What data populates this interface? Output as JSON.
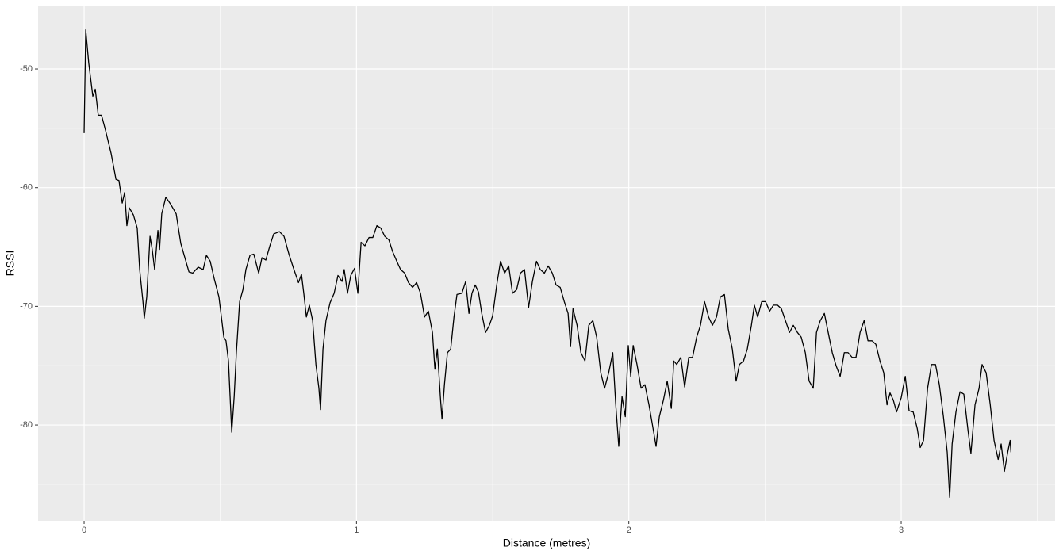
{
  "chart_data": {
    "type": "line",
    "x_label": "Distance (metres)",
    "y_label": "RSSI",
    "xlim": [
      -0.169,
      3.565
    ],
    "ylim": [
      -88.08,
      -44.72
    ],
    "xticks": [
      0,
      1,
      2,
      3
    ],
    "yticks": [
      -50,
      -60,
      -70,
      -80
    ],
    "x_minor": [
      0.5,
      1.5,
      2.5,
      3.5
    ],
    "y_minor": [
      -55,
      -65,
      -75,
      -85
    ],
    "grid": true,
    "panel_color": "#ebebeb",
    "series": [
      {
        "color": "#000000",
        "x": [
          0,
          0.006,
          0.017,
          0.032,
          0.041,
          0.052,
          0.064,
          0.079,
          0.099,
          0.117,
          0.128,
          0.14,
          0.149,
          0.157,
          0.166,
          0.181,
          0.195,
          0.204,
          0.216,
          0.221,
          0.23,
          0.242,
          0.25,
          0.259,
          0.271,
          0.277,
          0.285,
          0.3,
          0.318,
          0.338,
          0.355,
          0.37,
          0.385,
          0.399,
          0.419,
          0.437,
          0.449,
          0.463,
          0.478,
          0.495,
          0.504,
          0.513,
          0.521,
          0.53,
          0.536,
          0.542,
          0.551,
          0.559,
          0.571,
          0.583,
          0.594,
          0.609,
          0.623,
          0.641,
          0.653,
          0.667,
          0.682,
          0.696,
          0.717,
          0.734,
          0.752,
          0.769,
          0.787,
          0.798,
          0.807,
          0.816,
          0.827,
          0.839,
          0.851,
          0.862,
          0.868,
          0.877,
          0.888,
          0.903,
          0.918,
          0.932,
          0.947,
          0.955,
          0.967,
          0.979,
          0.993,
          1.005,
          1.017,
          1.031,
          1.046,
          1.06,
          1.075,
          1.089,
          1.104,
          1.119,
          1.133,
          1.148,
          1.162,
          1.177,
          1.191,
          1.206,
          1.221,
          1.235,
          1.25,
          1.264,
          1.279,
          1.288,
          1.297,
          1.308,
          1.314,
          1.323,
          1.334,
          1.346,
          1.358,
          1.369,
          1.387,
          1.401,
          1.413,
          1.424,
          1.436,
          1.448,
          1.46,
          1.474,
          1.488,
          1.5,
          1.515,
          1.529,
          1.544,
          1.559,
          1.573,
          1.588,
          1.602,
          1.617,
          1.632,
          1.646,
          1.661,
          1.675,
          1.69,
          1.704,
          1.719,
          1.733,
          1.748,
          1.763,
          1.777,
          1.786,
          1.795,
          1.81,
          1.824,
          1.839,
          1.853,
          1.868,
          1.882,
          1.897,
          1.911,
          1.926,
          1.941,
          1.952,
          1.963,
          1.975,
          1.987,
          1.998,
          2.007,
          2.016,
          2.03,
          2.045,
          2.059,
          2.074,
          2.089,
          2.1,
          2.112,
          2.127,
          2.141,
          2.156,
          2.165,
          2.176,
          2.191,
          2.205,
          2.22,
          2.234,
          2.249,
          2.263,
          2.278,
          2.293,
          2.307,
          2.322,
          2.336,
          2.351,
          2.365,
          2.38,
          2.394,
          2.406,
          2.421,
          2.435,
          2.45,
          2.461,
          2.473,
          2.488,
          2.502,
          2.517,
          2.531,
          2.546,
          2.56,
          2.575,
          2.59,
          2.604,
          2.619,
          2.633,
          2.648,
          2.662,
          2.677,
          2.689,
          2.703,
          2.718,
          2.732,
          2.747,
          2.761,
          2.776,
          2.791,
          2.805,
          2.82,
          2.834,
          2.849,
          2.864,
          2.878,
          2.893,
          2.907,
          2.922,
          2.936,
          2.948,
          2.959,
          2.971,
          2.983,
          3.0,
          3.015,
          3.029,
          3.044,
          3.059,
          3.07,
          3.082,
          3.097,
          3.111,
          3.126,
          3.14,
          3.155,
          3.169,
          3.178,
          3.187,
          3.201,
          3.216,
          3.23,
          3.245,
          3.256,
          3.271,
          3.286,
          3.297,
          3.312,
          3.327,
          3.341,
          3.356,
          3.367,
          3.379,
          3.391,
          3.4,
          3.403
        ],
        "values": [
          -55.4,
          -46.7,
          -49.5,
          -52.3,
          -51.7,
          -53.9,
          -53.9,
          -55.2,
          -57.1,
          -59.3,
          -59.4,
          -61.3,
          -60.4,
          -63.2,
          -61.7,
          -62.3,
          -63.4,
          -66.9,
          -69.6,
          -71.0,
          -69.2,
          -64.1,
          -65.2,
          -66.9,
          -63.6,
          -65.2,
          -62.2,
          -60.8,
          -61.4,
          -62.2,
          -64.7,
          -65.9,
          -67.1,
          -67.2,
          -66.7,
          -66.9,
          -65.7,
          -66.2,
          -67.7,
          -69.2,
          -70.9,
          -72.6,
          -72.9,
          -74.6,
          -77.6,
          -80.6,
          -77.6,
          -73.9,
          -69.6,
          -68.6,
          -66.9,
          -65.7,
          -65.6,
          -67.2,
          -65.9,
          -66.1,
          -64.9,
          -63.9,
          -63.7,
          -64.1,
          -65.6,
          -66.8,
          -68.0,
          -67.3,
          -69.0,
          -70.9,
          -69.9,
          -71.2,
          -74.9,
          -76.9,
          -78.7,
          -73.6,
          -71.2,
          -69.7,
          -68.9,
          -67.4,
          -67.9,
          -66.9,
          -68.9,
          -67.4,
          -66.8,
          -68.9,
          -64.6,
          -64.9,
          -64.2,
          -64.2,
          -63.2,
          -63.4,
          -64.1,
          -64.4,
          -65.4,
          -66.2,
          -66.9,
          -67.2,
          -68.0,
          -68.4,
          -68.0,
          -68.9,
          -70.9,
          -70.4,
          -72.2,
          -75.3,
          -73.6,
          -77.6,
          -79.5,
          -76.6,
          -73.9,
          -73.6,
          -70.9,
          -69.0,
          -68.9,
          -67.9,
          -70.6,
          -68.9,
          -68.2,
          -68.8,
          -70.6,
          -72.2,
          -71.6,
          -70.8,
          -68.2,
          -66.2,
          -67.2,
          -66.6,
          -68.9,
          -68.6,
          -67.2,
          -66.9,
          -70.1,
          -67.9,
          -66.2,
          -66.9,
          -67.2,
          -66.6,
          -67.2,
          -68.2,
          -68.4,
          -69.6,
          -70.6,
          -73.4,
          -70.2,
          -71.6,
          -73.9,
          -74.6,
          -71.6,
          -71.2,
          -72.6,
          -75.6,
          -76.9,
          -75.6,
          -73.9,
          -78.3,
          -81.8,
          -77.6,
          -79.3,
          -73.3,
          -75.9,
          -73.3,
          -74.9,
          -76.9,
          -76.6,
          -78.3,
          -80.3,
          -81.8,
          -79.3,
          -77.9,
          -76.3,
          -78.6,
          -74.6,
          -74.9,
          -74.3,
          -76.8,
          -74.3,
          -74.3,
          -72.6,
          -71.6,
          -69.6,
          -70.9,
          -71.6,
          -70.9,
          -69.2,
          -69.0,
          -71.9,
          -73.6,
          -76.3,
          -74.9,
          -74.6,
          -73.6,
          -71.6,
          -69.9,
          -70.9,
          -69.6,
          -69.6,
          -70.4,
          -69.9,
          -69.9,
          -70.2,
          -71.2,
          -72.2,
          -71.6,
          -72.2,
          -72.6,
          -73.9,
          -76.3,
          -76.9,
          -72.2,
          -71.2,
          -70.6,
          -72.2,
          -73.9,
          -75.0,
          -75.9,
          -73.9,
          -73.9,
          -74.3,
          -74.3,
          -72.2,
          -71.2,
          -72.9,
          -72.9,
          -73.2,
          -74.6,
          -75.6,
          -78.3,
          -77.3,
          -77.9,
          -78.9,
          -77.7,
          -75.9,
          -78.8,
          -78.9,
          -80.3,
          -81.9,
          -81.3,
          -76.9,
          -74.9,
          -74.9,
          -76.6,
          -79.3,
          -82.3,
          -86.1,
          -81.6,
          -78.9,
          -77.2,
          -77.4,
          -80.4,
          -82.4,
          -78.3,
          -76.9,
          -74.9,
          -75.6,
          -78.3,
          -81.3,
          -82.9,
          -81.6,
          -83.9,
          -82.3,
          -81.3,
          -82.3
        ]
      }
    ]
  }
}
